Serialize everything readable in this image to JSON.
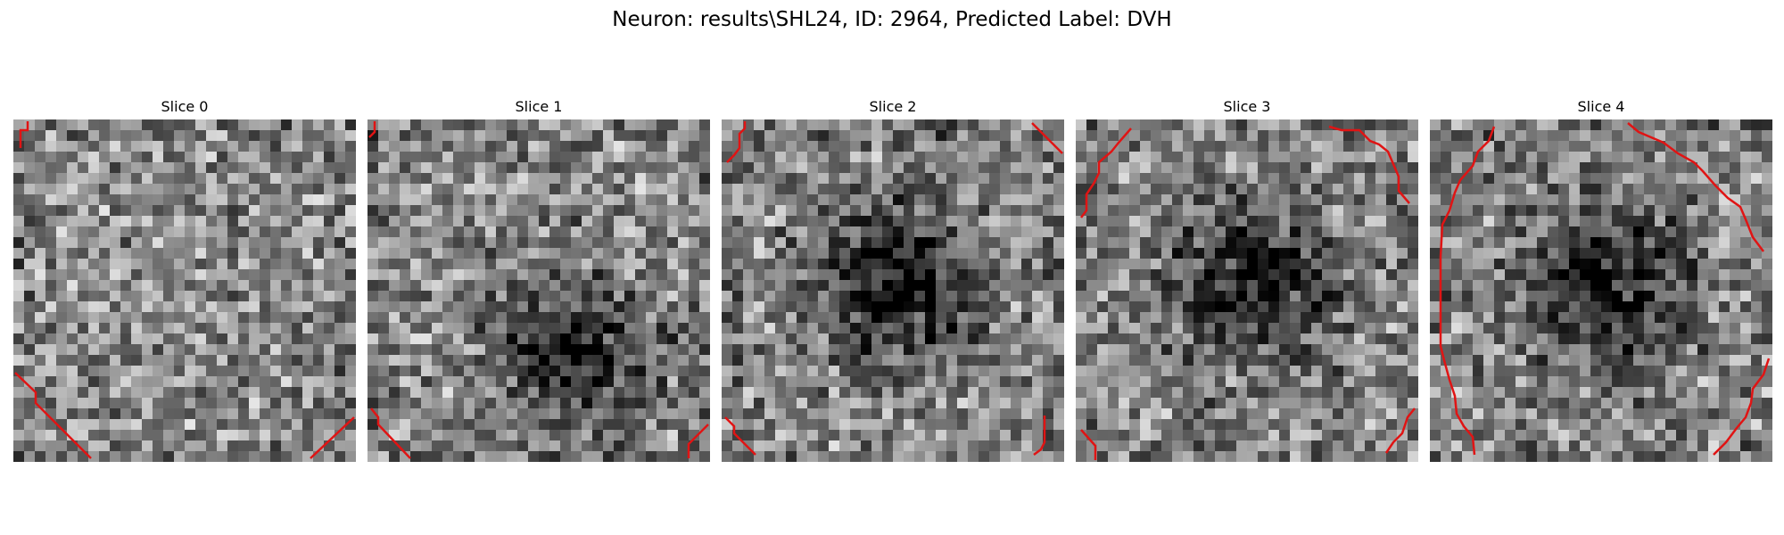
{
  "figure": {
    "title": "Neuron: results\\SHL24, ID: 2964, Predicted Label: DVH"
  },
  "panels": [
    {
      "title": "Slice 0",
      "dark_spot": null
    },
    {
      "title": "Slice 1",
      "dark_spot": "lower-center"
    },
    {
      "title": "Slice 2",
      "dark_spot": "center"
    },
    {
      "title": "Slice 3",
      "dark_spot": "center"
    },
    {
      "title": "Slice 4",
      "dark_spot": "center"
    }
  ],
  "colors": {
    "contour": "#e01414",
    "colormap": "gray"
  }
}
